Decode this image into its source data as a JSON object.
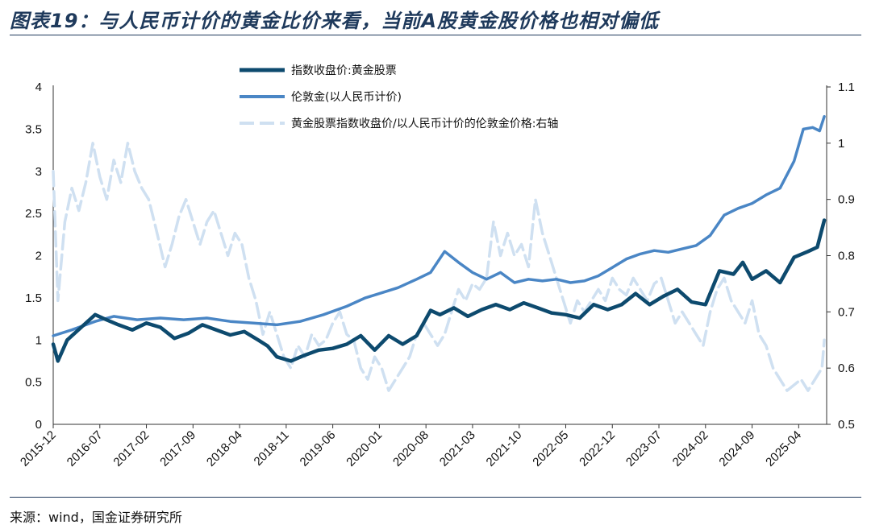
{
  "title": "图表19：与人民币计价的黄金比价来看，当前A股黄金股价格也相对偏低",
  "source": "来源：wind，国金证券研究所",
  "colors": {
    "gold_stock": "#0d4a6e",
    "london_gold": "#4a86c5",
    "ratio": "#cfe0f1",
    "rule": "#1f3a5c"
  },
  "chart_data": {
    "type": "line",
    "x_tick_labels": [
      "2015-12",
      "2016-07",
      "2017-02",
      "2017-09",
      "2018-04",
      "2018-11",
      "2019-06",
      "2020-01",
      "2020-08",
      "2021-03",
      "2021-10",
      "2022-05",
      "2022-12",
      "2023-07",
      "2024-02",
      "2024-09",
      "2025-04"
    ],
    "left_axis": {
      "ticks": [
        "0",
        "0.5",
        "1",
        "1.5",
        "2",
        "2.5",
        "3",
        "3.5",
        "4"
      ],
      "range": [
        0,
        4
      ]
    },
    "right_axis": {
      "ticks": [
        "0.5",
        "0.6",
        "0.7",
        "0.8",
        "0.9",
        "1",
        "1.1"
      ],
      "range": [
        0.5,
        1.1
      ]
    },
    "x_range": [
      0,
      16.6
    ],
    "series": [
      {
        "name": "指数收盘价:黄金股票",
        "axis": "left",
        "style": "solid-thick",
        "points": [
          [
            0,
            0.95
          ],
          [
            0.1,
            0.75
          ],
          [
            0.3,
            1.0
          ],
          [
            0.6,
            1.15
          ],
          [
            0.9,
            1.3
          ],
          [
            1.1,
            1.25
          ],
          [
            1.4,
            1.18
          ],
          [
            1.7,
            1.12
          ],
          [
            2.0,
            1.2
          ],
          [
            2.3,
            1.15
          ],
          [
            2.6,
            1.02
          ],
          [
            2.9,
            1.08
          ],
          [
            3.2,
            1.18
          ],
          [
            3.5,
            1.12
          ],
          [
            3.8,
            1.06
          ],
          [
            4.1,
            1.1
          ],
          [
            4.4,
            1.0
          ],
          [
            4.6,
            0.93
          ],
          [
            4.8,
            0.8
          ],
          [
            5.1,
            0.75
          ],
          [
            5.4,
            0.82
          ],
          [
            5.7,
            0.88
          ],
          [
            6.0,
            0.9
          ],
          [
            6.3,
            0.95
          ],
          [
            6.6,
            1.05
          ],
          [
            6.9,
            0.88
          ],
          [
            7.2,
            1.05
          ],
          [
            7.5,
            0.95
          ],
          [
            7.8,
            1.05
          ],
          [
            8.1,
            1.35
          ],
          [
            8.3,
            1.3
          ],
          [
            8.6,
            1.38
          ],
          [
            8.9,
            1.28
          ],
          [
            9.2,
            1.36
          ],
          [
            9.5,
            1.42
          ],
          [
            9.8,
            1.36
          ],
          [
            10.1,
            1.44
          ],
          [
            10.4,
            1.38
          ],
          [
            10.7,
            1.32
          ],
          [
            11.0,
            1.3
          ],
          [
            11.3,
            1.26
          ],
          [
            11.6,
            1.42
          ],
          [
            11.9,
            1.36
          ],
          [
            12.2,
            1.42
          ],
          [
            12.5,
            1.55
          ],
          [
            12.8,
            1.42
          ],
          [
            13.1,
            1.52
          ],
          [
            13.4,
            1.6
          ],
          [
            13.7,
            1.45
          ],
          [
            14.0,
            1.42
          ],
          [
            14.3,
            1.82
          ],
          [
            14.6,
            1.78
          ],
          [
            14.8,
            1.92
          ],
          [
            15.0,
            1.72
          ],
          [
            15.3,
            1.82
          ],
          [
            15.6,
            1.68
          ],
          [
            15.9,
            1.98
          ],
          [
            16.2,
            2.05
          ],
          [
            16.4,
            2.1
          ],
          [
            16.55,
            2.42
          ]
        ]
      },
      {
        "name": "伦敦金(以人民币计价)",
        "axis": "left",
        "style": "solid",
        "points": [
          [
            0,
            1.05
          ],
          [
            0.4,
            1.12
          ],
          [
            0.9,
            1.22
          ],
          [
            1.3,
            1.28
          ],
          [
            1.8,
            1.24
          ],
          [
            2.3,
            1.26
          ],
          [
            2.8,
            1.24
          ],
          [
            3.3,
            1.26
          ],
          [
            3.8,
            1.22
          ],
          [
            4.3,
            1.2
          ],
          [
            4.8,
            1.18
          ],
          [
            5.3,
            1.22
          ],
          [
            5.8,
            1.3
          ],
          [
            6.3,
            1.4
          ],
          [
            6.7,
            1.5
          ],
          [
            7.0,
            1.55
          ],
          [
            7.4,
            1.62
          ],
          [
            7.8,
            1.72
          ],
          [
            8.1,
            1.8
          ],
          [
            8.4,
            2.05
          ],
          [
            8.7,
            1.92
          ],
          [
            9.0,
            1.8
          ],
          [
            9.3,
            1.72
          ],
          [
            9.6,
            1.8
          ],
          [
            9.9,
            1.68
          ],
          [
            10.2,
            1.72
          ],
          [
            10.5,
            1.7
          ],
          [
            10.8,
            1.72
          ],
          [
            11.1,
            1.68
          ],
          [
            11.4,
            1.7
          ],
          [
            11.7,
            1.76
          ],
          [
            12.0,
            1.86
          ],
          [
            12.3,
            1.96
          ],
          [
            12.6,
            2.02
          ],
          [
            12.9,
            2.06
          ],
          [
            13.2,
            2.04
          ],
          [
            13.5,
            2.08
          ],
          [
            13.8,
            2.12
          ],
          [
            14.1,
            2.24
          ],
          [
            14.4,
            2.48
          ],
          [
            14.7,
            2.56
          ],
          [
            15.0,
            2.62
          ],
          [
            15.3,
            2.72
          ],
          [
            15.6,
            2.8
          ],
          [
            15.9,
            3.12
          ],
          [
            16.1,
            3.5
          ],
          [
            16.3,
            3.52
          ],
          [
            16.45,
            3.48
          ],
          [
            16.55,
            3.65
          ]
        ]
      },
      {
        "name": "黄金股票指数收盘价/以人民币计价的伦敦金价格:右轴",
        "axis": "right",
        "style": "dashed",
        "points": [
          [
            0,
            0.95
          ],
          [
            0.1,
            0.72
          ],
          [
            0.25,
            0.86
          ],
          [
            0.4,
            0.92
          ],
          [
            0.55,
            0.88
          ],
          [
            0.7,
            0.93
          ],
          [
            0.85,
            1.0
          ],
          [
            1.0,
            0.94
          ],
          [
            1.15,
            0.9
          ],
          [
            1.3,
            0.97
          ],
          [
            1.45,
            0.93
          ],
          [
            1.6,
            1.0
          ],
          [
            1.75,
            0.95
          ],
          [
            1.9,
            0.92
          ],
          [
            2.05,
            0.9
          ],
          [
            2.2,
            0.85
          ],
          [
            2.4,
            0.78
          ],
          [
            2.55,
            0.82
          ],
          [
            2.7,
            0.87
          ],
          [
            2.85,
            0.9
          ],
          [
            3.0,
            0.86
          ],
          [
            3.15,
            0.82
          ],
          [
            3.3,
            0.86
          ],
          [
            3.45,
            0.88
          ],
          [
            3.6,
            0.84
          ],
          [
            3.75,
            0.8
          ],
          [
            3.9,
            0.84
          ],
          [
            4.05,
            0.82
          ],
          [
            4.2,
            0.76
          ],
          [
            4.35,
            0.72
          ],
          [
            4.5,
            0.66
          ],
          [
            4.65,
            0.7
          ],
          [
            4.8,
            0.66
          ],
          [
            4.95,
            0.62
          ],
          [
            5.1,
            0.6
          ],
          [
            5.25,
            0.64
          ],
          [
            5.4,
            0.62
          ],
          [
            5.55,
            0.66
          ],
          [
            5.7,
            0.64
          ],
          [
            5.85,
            0.65
          ],
          [
            6.0,
            0.68
          ],
          [
            6.15,
            0.7
          ],
          [
            6.3,
            0.66
          ],
          [
            6.45,
            0.65
          ],
          [
            6.6,
            0.6
          ],
          [
            6.75,
            0.58
          ],
          [
            6.9,
            0.62
          ],
          [
            7.05,
            0.6
          ],
          [
            7.2,
            0.56
          ],
          [
            7.35,
            0.58
          ],
          [
            7.5,
            0.6
          ],
          [
            7.65,
            0.62
          ],
          [
            7.8,
            0.66
          ],
          [
            7.95,
            0.68
          ],
          [
            8.1,
            0.66
          ],
          [
            8.25,
            0.64
          ],
          [
            8.4,
            0.66
          ],
          [
            8.55,
            0.7
          ],
          [
            8.7,
            0.74
          ],
          [
            8.85,
            0.72
          ],
          [
            9.0,
            0.75
          ],
          [
            9.15,
            0.74
          ],
          [
            9.3,
            0.76
          ],
          [
            9.45,
            0.86
          ],
          [
            9.6,
            0.8
          ],
          [
            9.75,
            0.84
          ],
          [
            9.9,
            0.8
          ],
          [
            10.05,
            0.82
          ],
          [
            10.2,
            0.78
          ],
          [
            10.35,
            0.9
          ],
          [
            10.5,
            0.84
          ],
          [
            10.65,
            0.8
          ],
          [
            10.8,
            0.76
          ],
          [
            10.95,
            0.72
          ],
          [
            11.1,
            0.68
          ],
          [
            11.25,
            0.72
          ],
          [
            11.4,
            0.7
          ],
          [
            11.55,
            0.72
          ],
          [
            11.7,
            0.74
          ],
          [
            11.85,
            0.72
          ],
          [
            12.0,
            0.76
          ],
          [
            12.15,
            0.74
          ],
          [
            12.3,
            0.73
          ],
          [
            12.45,
            0.76
          ],
          [
            12.6,
            0.74
          ],
          [
            12.75,
            0.72
          ],
          [
            12.9,
            0.75
          ],
          [
            13.05,
            0.76
          ],
          [
            13.2,
            0.72
          ],
          [
            13.35,
            0.68
          ],
          [
            13.5,
            0.7
          ],
          [
            13.65,
            0.68
          ],
          [
            13.8,
            0.66
          ],
          [
            13.95,
            0.64
          ],
          [
            14.1,
            0.7
          ],
          [
            14.25,
            0.74
          ],
          [
            14.4,
            0.76
          ],
          [
            14.55,
            0.72
          ],
          [
            14.7,
            0.7
          ],
          [
            14.85,
            0.68
          ],
          [
            15.0,
            0.72
          ],
          [
            15.15,
            0.66
          ],
          [
            15.3,
            0.64
          ],
          [
            15.45,
            0.6
          ],
          [
            15.6,
            0.58
          ],
          [
            15.75,
            0.56
          ],
          [
            15.9,
            0.57
          ],
          [
            16.05,
            0.58
          ],
          [
            16.2,
            0.56
          ],
          [
            16.35,
            0.58
          ],
          [
            16.5,
            0.6
          ],
          [
            16.55,
            0.65
          ]
        ]
      }
    ]
  }
}
